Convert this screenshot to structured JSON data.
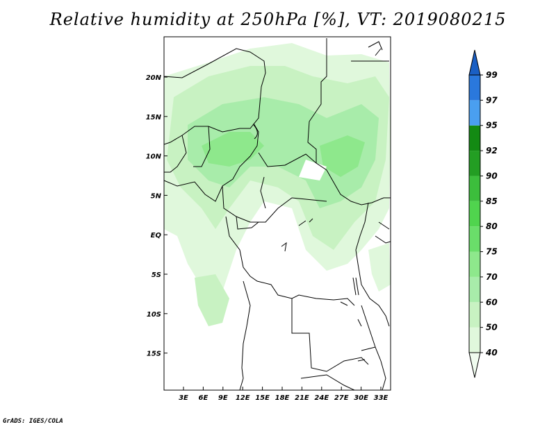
{
  "title": "Relative humidity at 250hPa [%], VT: 2019080215",
  "credit": "GrADS: IGES/COLA",
  "map": {
    "lat_labels": [
      "20N",
      "15N",
      "10N",
      "5N",
      "EQ",
      "5S",
      "10S",
      "15S"
    ],
    "lon_labels": [
      "3E",
      "6E",
      "9E",
      "12E",
      "15E",
      "18E",
      "21E",
      "24E",
      "27E",
      "30E",
      "33E"
    ]
  },
  "colorbar": {
    "levels": [
      "40",
      "50",
      "60",
      "70",
      "75",
      "80",
      "85",
      "90",
      "92",
      "95",
      "97",
      "99"
    ],
    "colors": [
      "#f0fcef",
      "#e0f8dc",
      "#c8f2c2",
      "#a8ecaa",
      "#8ee88c",
      "#6ade6a",
      "#50d44e",
      "#3cbe3c",
      "#239e23",
      "#138a13",
      "#4a9ff0",
      "#2a78dd",
      "#1a5fc4"
    ]
  },
  "palette": {
    "map_border": "#000000",
    "land_bg": "#ffffff"
  }
}
